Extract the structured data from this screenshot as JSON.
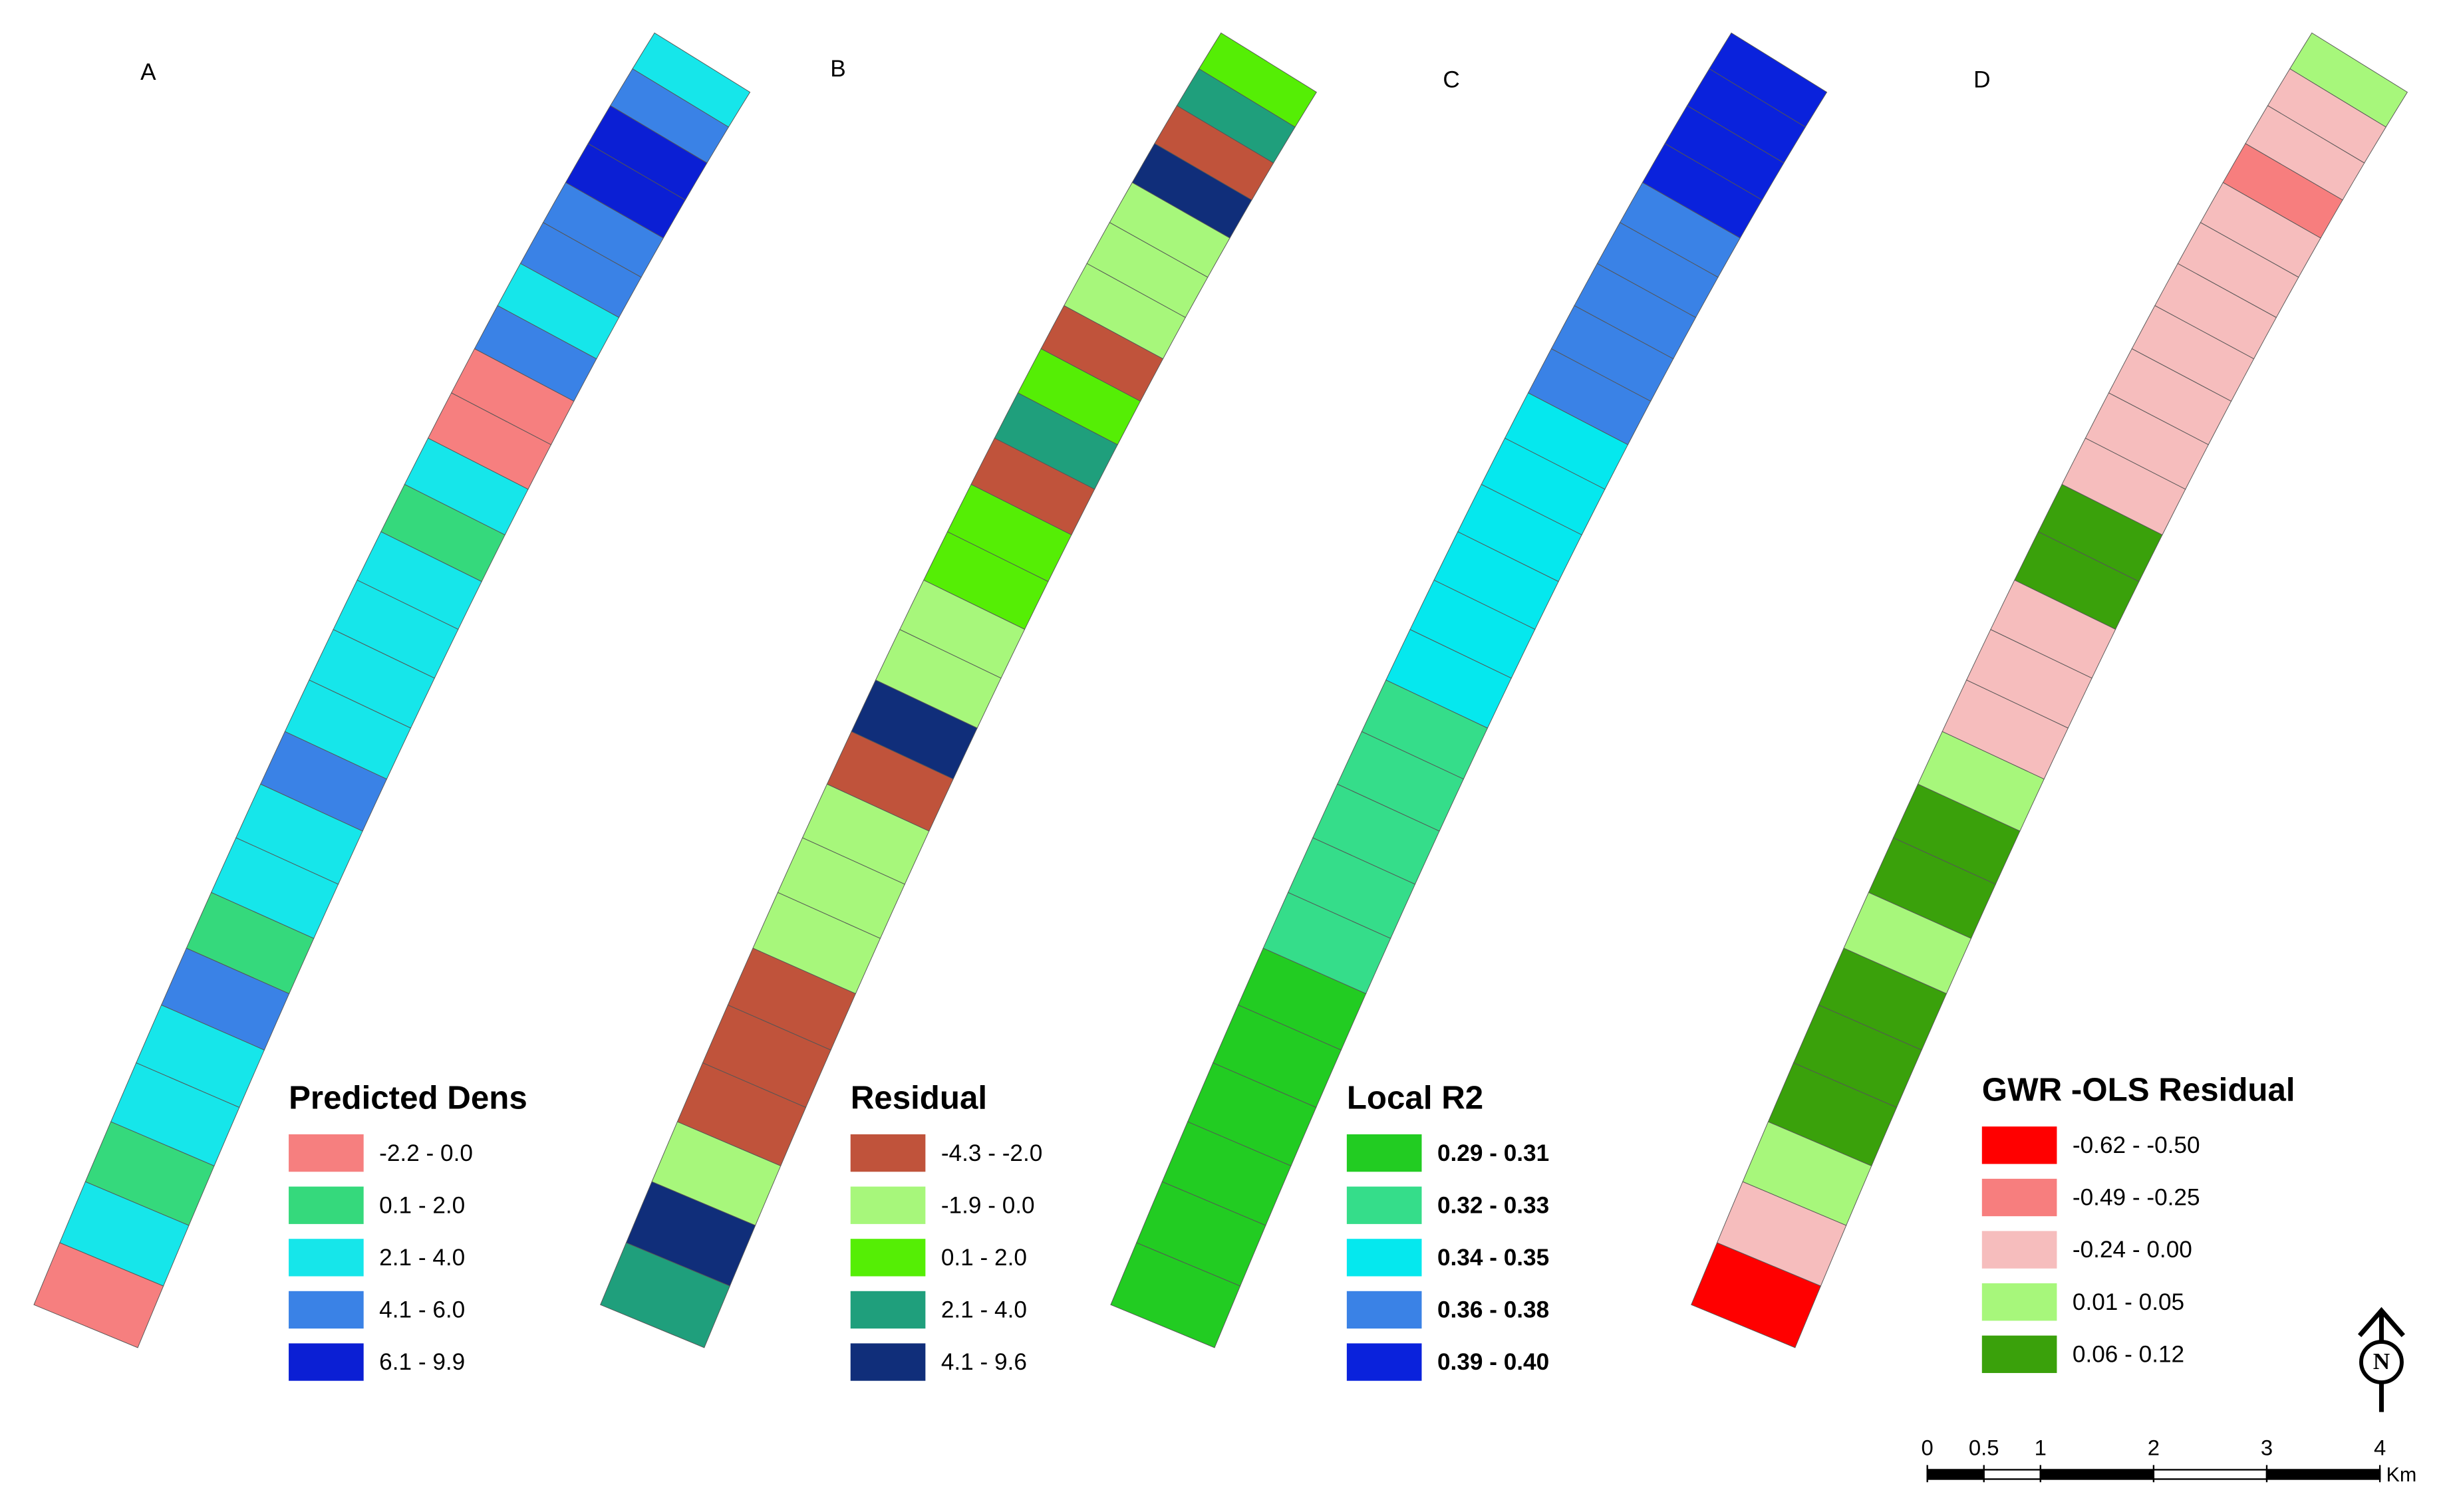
{
  "panels": [
    {
      "label": "A",
      "legend_title": "Predicted Dens",
      "bold_labels": false,
      "classes": [
        {
          "label": "-2.2 - 0.0",
          "color": "#f67f7f"
        },
        {
          "label": "0.1 - 2.0",
          "color": "#35d97c"
        },
        {
          "label": "2.1 - 4.0",
          "color": "#16e6ea"
        },
        {
          "label": "4.1 - 6.0",
          "color": "#3a82e6"
        },
        {
          "label": "6.1 - 9.9",
          "color": "#0b1fd4"
        }
      ],
      "segments": [
        "#f67f7f",
        "#16e6ea",
        "#35d97c",
        "#16e6ea",
        "#16e6ea",
        "#3a82e6",
        "#35d97c",
        "#16e6ea",
        "#16e6ea",
        "#3a82e6",
        "#16e6ea",
        "#16e6ea",
        "#16e6ea",
        "#16e6ea",
        "#35d97c",
        "#16e6ea",
        "#f67f7f",
        "#f67f7f",
        "#3a82e6",
        "#16e6ea",
        "#3a82e6",
        "#3a82e6",
        "#0b1fd4",
        "#0b1fd4",
        "#3a82e6",
        "#16e6ea"
      ]
    },
    {
      "label": "B",
      "legend_title": "Residual",
      "bold_labels": false,
      "classes": [
        {
          "label": "-4.3 - -2.0",
          "color": "#c0533b"
        },
        {
          "label": "-1.9 - 0.0",
          "color": "#a7f77b"
        },
        {
          "label": "0.1 - 2.0",
          "color": "#55ee05"
        },
        {
          "label": "2.1 - 4.0",
          "color": "#1f9f7c"
        },
        {
          "label": "4.1 - 9.6",
          "color": "#102e7a"
        }
      ],
      "segments": [
        "#1f9f7c",
        "#102e7a",
        "#a7f77b",
        "#c0533b",
        "#c0533b",
        "#c0533b",
        "#a7f77b",
        "#a7f77b",
        "#a7f77b",
        "#c0533b",
        "#102e7a",
        "#a7f77b",
        "#a7f77b",
        "#55ee05",
        "#55ee05",
        "#c0533b",
        "#1f9f7c",
        "#55ee05",
        "#c0533b",
        "#a7f77b",
        "#a7f77b",
        "#a7f77b",
        "#102e7a",
        "#c0533b",
        "#1f9f7c",
        "#55ee05"
      ]
    },
    {
      "label": "C",
      "legend_title": "Local R2",
      "bold_labels": true,
      "classes": [
        {
          "label": "0.29 - 0.31",
          "color": "#22cc22"
        },
        {
          "label": "0.32 - 0.33",
          "color": "#35dd8a"
        },
        {
          "label": "0.34 - 0.35",
          "color": "#05e8ee"
        },
        {
          "label": "0.36 - 0.38",
          "color": "#3a82e6"
        },
        {
          "label": "0.39 - 0.40",
          "color": "#0a22dc"
        }
      ],
      "segments": [
        "#22cc22",
        "#22cc22",
        "#22cc22",
        "#22cc22",
        "#22cc22",
        "#22cc22",
        "#35dd8a",
        "#35dd8a",
        "#35dd8a",
        "#35dd8a",
        "#35dd8a",
        "#05e8ee",
        "#05e8ee",
        "#05e8ee",
        "#05e8ee",
        "#05e8ee",
        "#05e8ee",
        "#3a82e6",
        "#3a82e6",
        "#3a82e6",
        "#3a82e6",
        "#3a82e6",
        "#0a22dc",
        "#0a22dc",
        "#0a22dc",
        "#0a22dc"
      ]
    },
    {
      "label": "D",
      "legend_title": "GWR -OLS Residual",
      "bold_labels": false,
      "classes": [
        {
          "label": "-0.62 - -0.50",
          "color": "#ff0000"
        },
        {
          "label": "-0.49 - -0.25",
          "color": "#f77e7e"
        },
        {
          "label": "-0.24 - 0.00",
          "color": "#f6bdbd"
        },
        {
          "label": "0.01 - 0.05",
          "color": "#a7f77b"
        },
        {
          "label": "0.06 - 0.12",
          "color": "#3aa10b"
        }
      ],
      "segments": [
        "#ff0000",
        "#f6bdbd",
        "#a7f77b",
        "#3aa10b",
        "#3aa10b",
        "#3aa10b",
        "#a7f77b",
        "#3aa10b",
        "#3aa10b",
        "#a7f77b",
        "#f6bdbd",
        "#f6bdbd",
        "#f6bdbd",
        "#3aa10b",
        "#3aa10b",
        "#f6bdbd",
        "#f6bdbd",
        "#f6bdbd",
        "#f6bdbd",
        "#f6bdbd",
        "#f6bdbd",
        "#f6bdbd",
        "#f77e7e",
        "#f6bdbd",
        "#f6bdbd",
        "#a7f77b"
      ]
    }
  ],
  "scale_bar": {
    "ticks": [
      0,
      0.5,
      1,
      2,
      3,
      4
    ],
    "unit": "Km"
  },
  "north_arrow": "N"
}
